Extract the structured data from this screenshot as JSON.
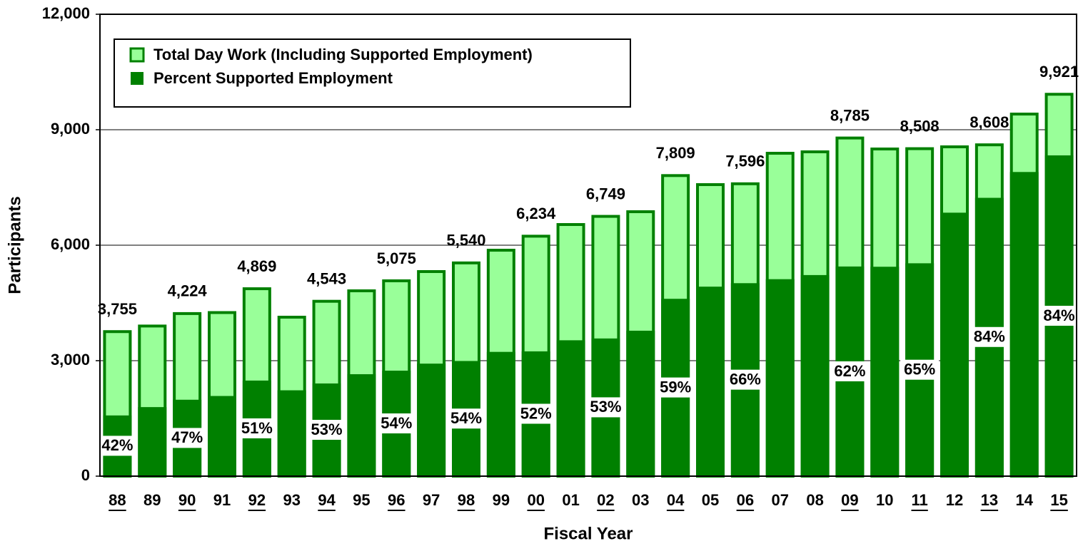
{
  "chart_data": {
    "type": "bar",
    "xlabel": "Fiscal Year",
    "ylabel": "Participants",
    "categories": [
      "88",
      "89",
      "90",
      "91",
      "92",
      "93",
      "94",
      "95",
      "96",
      "97",
      "98",
      "99",
      "00",
      "01",
      "02",
      "03",
      "04",
      "05",
      "06",
      "07",
      "08",
      "09",
      "10",
      "11",
      "12",
      "13",
      "14",
      "15"
    ],
    "series": [
      {
        "name": "Total Day Work (Including Supported Employment)",
        "color": "#99ff99",
        "border": "#008000",
        "values": [
          3755,
          3900,
          4224,
          4250,
          4869,
          4130,
          4543,
          4815,
          5075,
          5315,
          5540,
          5870,
          6234,
          6537,
          6749,
          6870,
          7809,
          7574,
          7596,
          8389,
          8426,
          8785,
          8500,
          8508,
          8556,
          8608,
          9407,
          9921
        ],
        "value_labels": [
          "3,755",
          null,
          "4,224",
          null,
          "4,869",
          null,
          "4,543",
          null,
          "5,075",
          null,
          "5,540",
          null,
          "6,234",
          null,
          "6,749",
          null,
          "7,809",
          null,
          "7,596",
          null,
          null,
          "8,785",
          null,
          "8,508",
          null,
          "8,608",
          null,
          "9,921"
        ]
      },
      {
        "name": "Percent Supported Employment",
        "color": "#008000",
        "values": [
          42,
          46,
          47,
          49,
          51,
          54,
          53,
          55,
          54,
          55,
          54,
          55,
          52,
          54,
          53,
          55,
          59,
          65,
          66,
          61,
          62,
          62,
          64,
          65,
          80,
          84,
          84,
          84
        ],
        "value_labels": [
          "42%",
          null,
          "47%",
          null,
          "51%",
          null,
          "53%",
          null,
          "54%",
          null,
          "54%",
          null,
          "52%",
          null,
          "53%",
          null,
          "59%",
          null,
          "66%",
          null,
          null,
          "62%",
          null,
          "65%",
          null,
          "84%",
          null,
          "84%"
        ]
      }
    ],
    "ylim": [
      0,
      12000
    ],
    "yticks": [
      0,
      {
        "value": 3000,
        "label": "3,000"
      },
      {
        "value": 6000,
        "label": "6,000"
      },
      {
        "value": 9000,
        "label": "9,000"
      },
      {
        "value": 12000,
        "label": "12,000"
      }
    ],
    "grid": true,
    "legend": "upper left"
  }
}
